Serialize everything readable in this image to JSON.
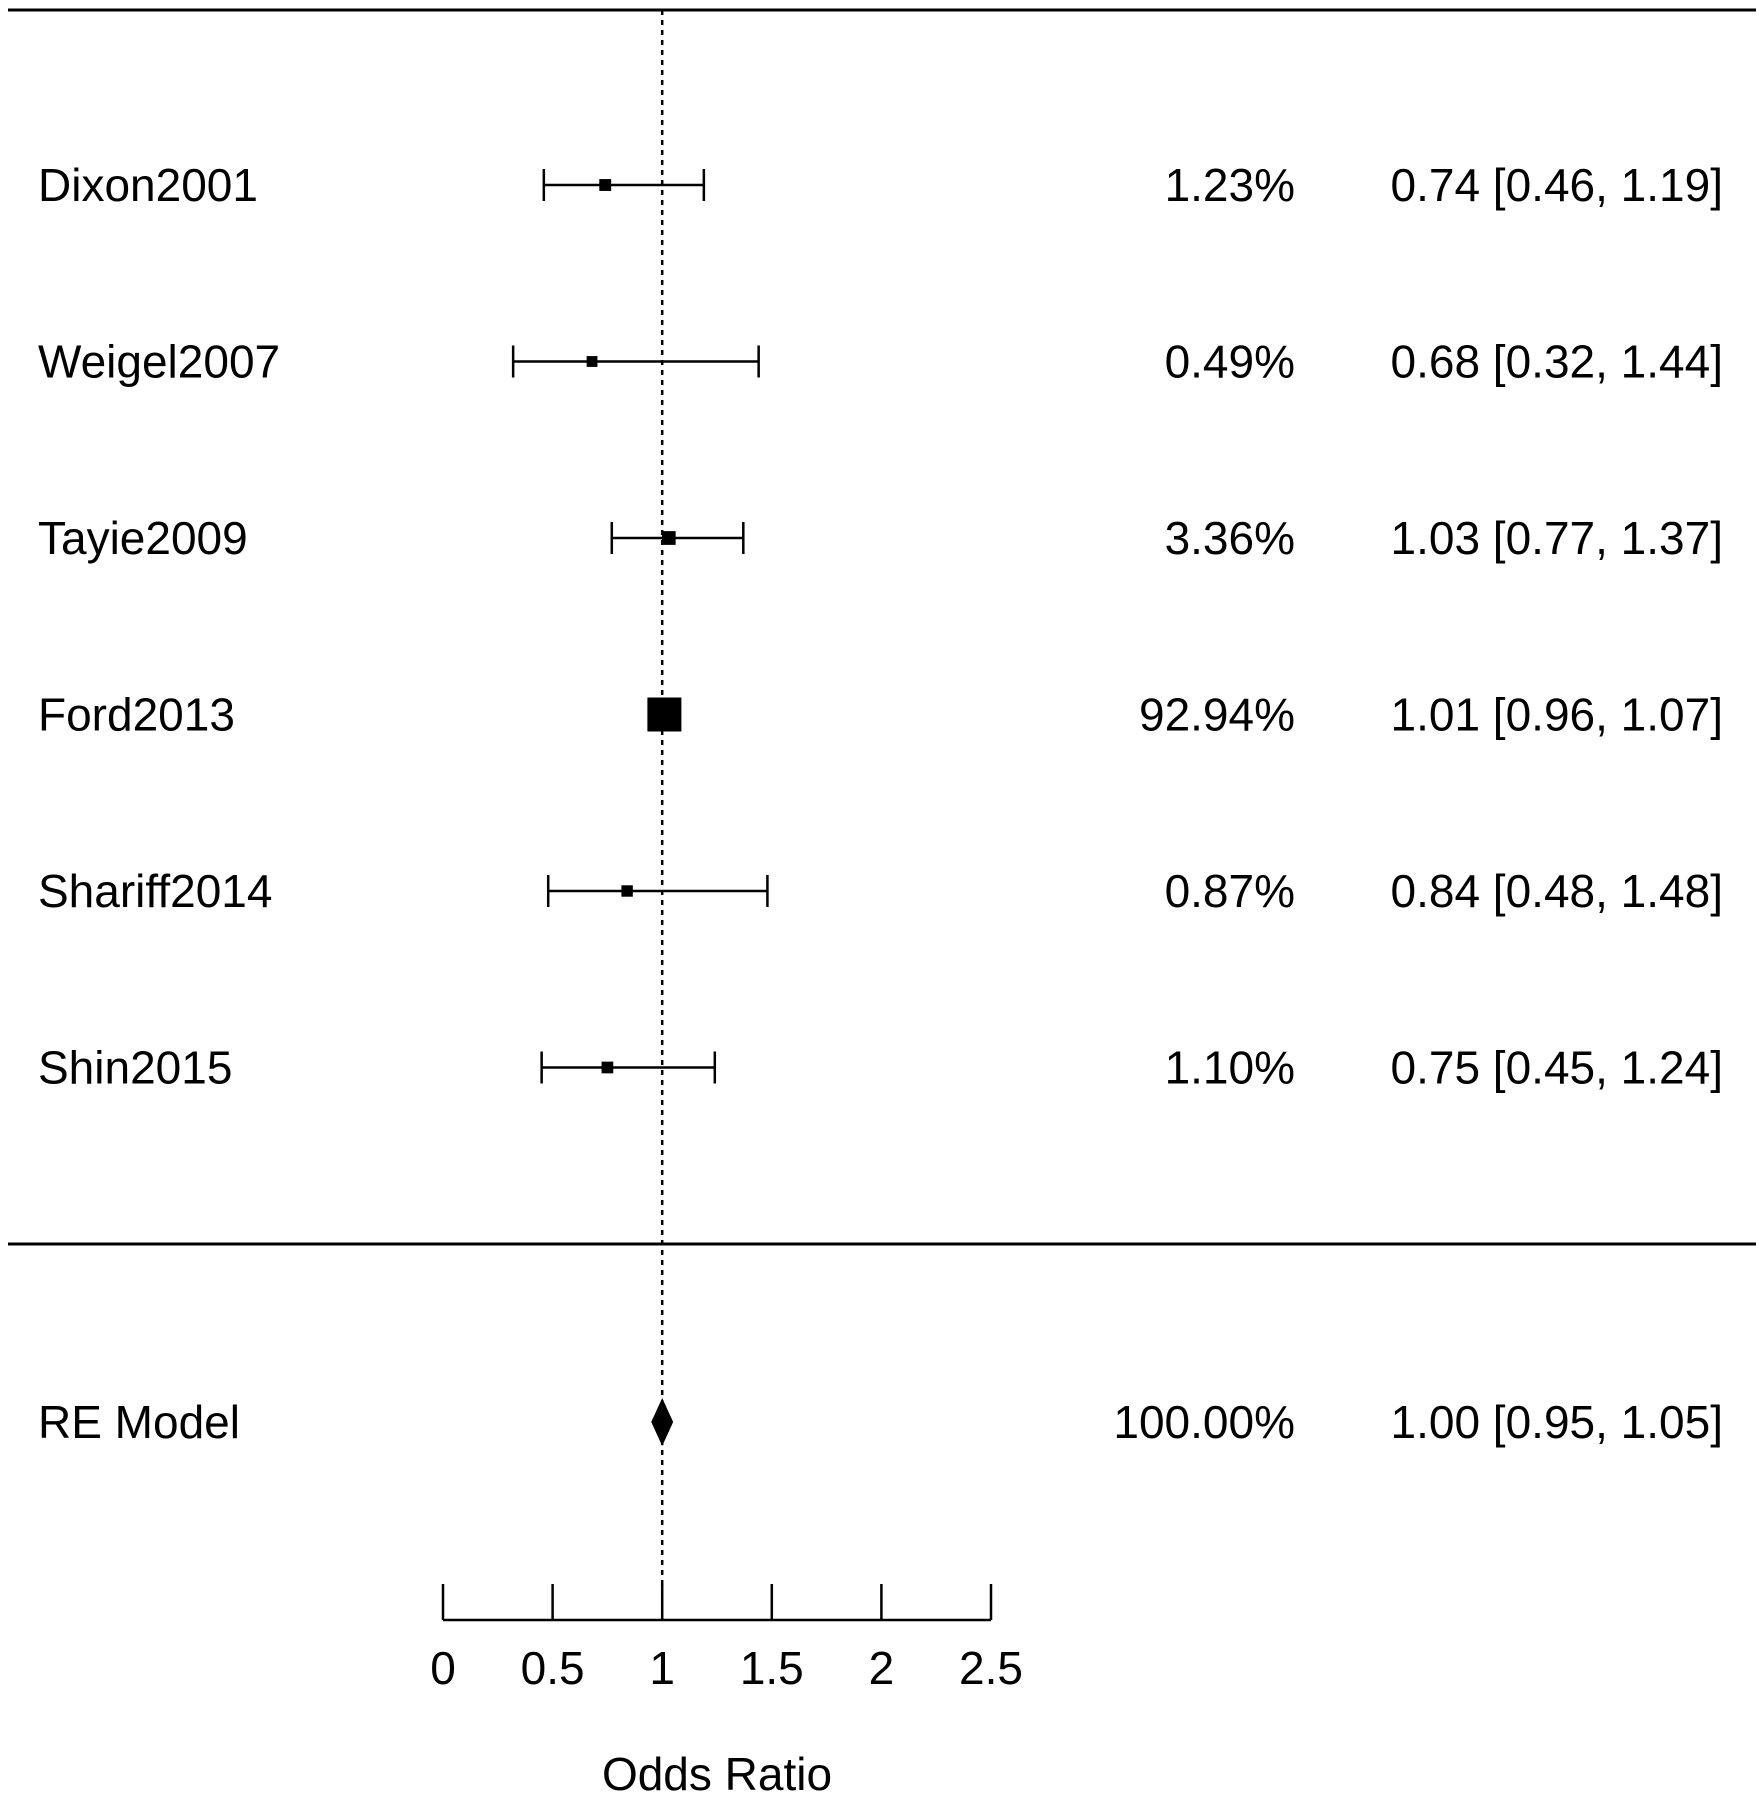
{
  "chart_data": {
    "type": "forest",
    "xlabel": "Odds Ratio",
    "xlim": [
      0,
      2.5
    ],
    "xticks": [
      {
        "value": 0,
        "label": "0"
      },
      {
        "value": 0.5,
        "label": "0.5"
      },
      {
        "value": 1,
        "label": "1"
      },
      {
        "value": 1.5,
        "label": "1.5"
      },
      {
        "value": 2,
        "label": "2"
      },
      {
        "value": 2.5,
        "label": "2.5"
      }
    ],
    "reference_line": 1,
    "studies": [
      {
        "name": "Dixon2001",
        "weight_label": "1.23%",
        "weight": 1.23,
        "estimate": 0.74,
        "lower": 0.46,
        "upper": 1.19,
        "ci_label": "0.74 [0.46, 1.19]"
      },
      {
        "name": "Weigel2007",
        "weight_label": "0.49%",
        "weight": 0.49,
        "estimate": 0.68,
        "lower": 0.32,
        "upper": 1.44,
        "ci_label": "0.68 [0.32, 1.44]"
      },
      {
        "name": "Tayie2009",
        "weight_label": "3.36%",
        "weight": 3.36,
        "estimate": 1.03,
        "lower": 0.77,
        "upper": 1.37,
        "ci_label": "1.03 [0.77, 1.37]"
      },
      {
        "name": "Ford2013",
        "weight_label": "92.94%",
        "weight": 92.94,
        "estimate": 1.01,
        "lower": 0.96,
        "upper": 1.07,
        "ci_label": "1.01 [0.96, 1.07]"
      },
      {
        "name": "Shariff2014",
        "weight_label": "0.87%",
        "weight": 0.87,
        "estimate": 0.84,
        "lower": 0.48,
        "upper": 1.48,
        "ci_label": "0.84 [0.48, 1.48]"
      },
      {
        "name": "Shin2015",
        "weight_label": "1.10%",
        "weight": 1.1,
        "estimate": 0.75,
        "lower": 0.45,
        "upper": 1.24,
        "ci_label": "0.75 [0.45, 1.24]"
      }
    ],
    "summary": {
      "name": "RE Model",
      "weight_label": "100.00%",
      "estimate": 1.0,
      "lower": 0.95,
      "upper": 1.05,
      "ci_label": "1.00 [0.95, 1.05]"
    }
  }
}
